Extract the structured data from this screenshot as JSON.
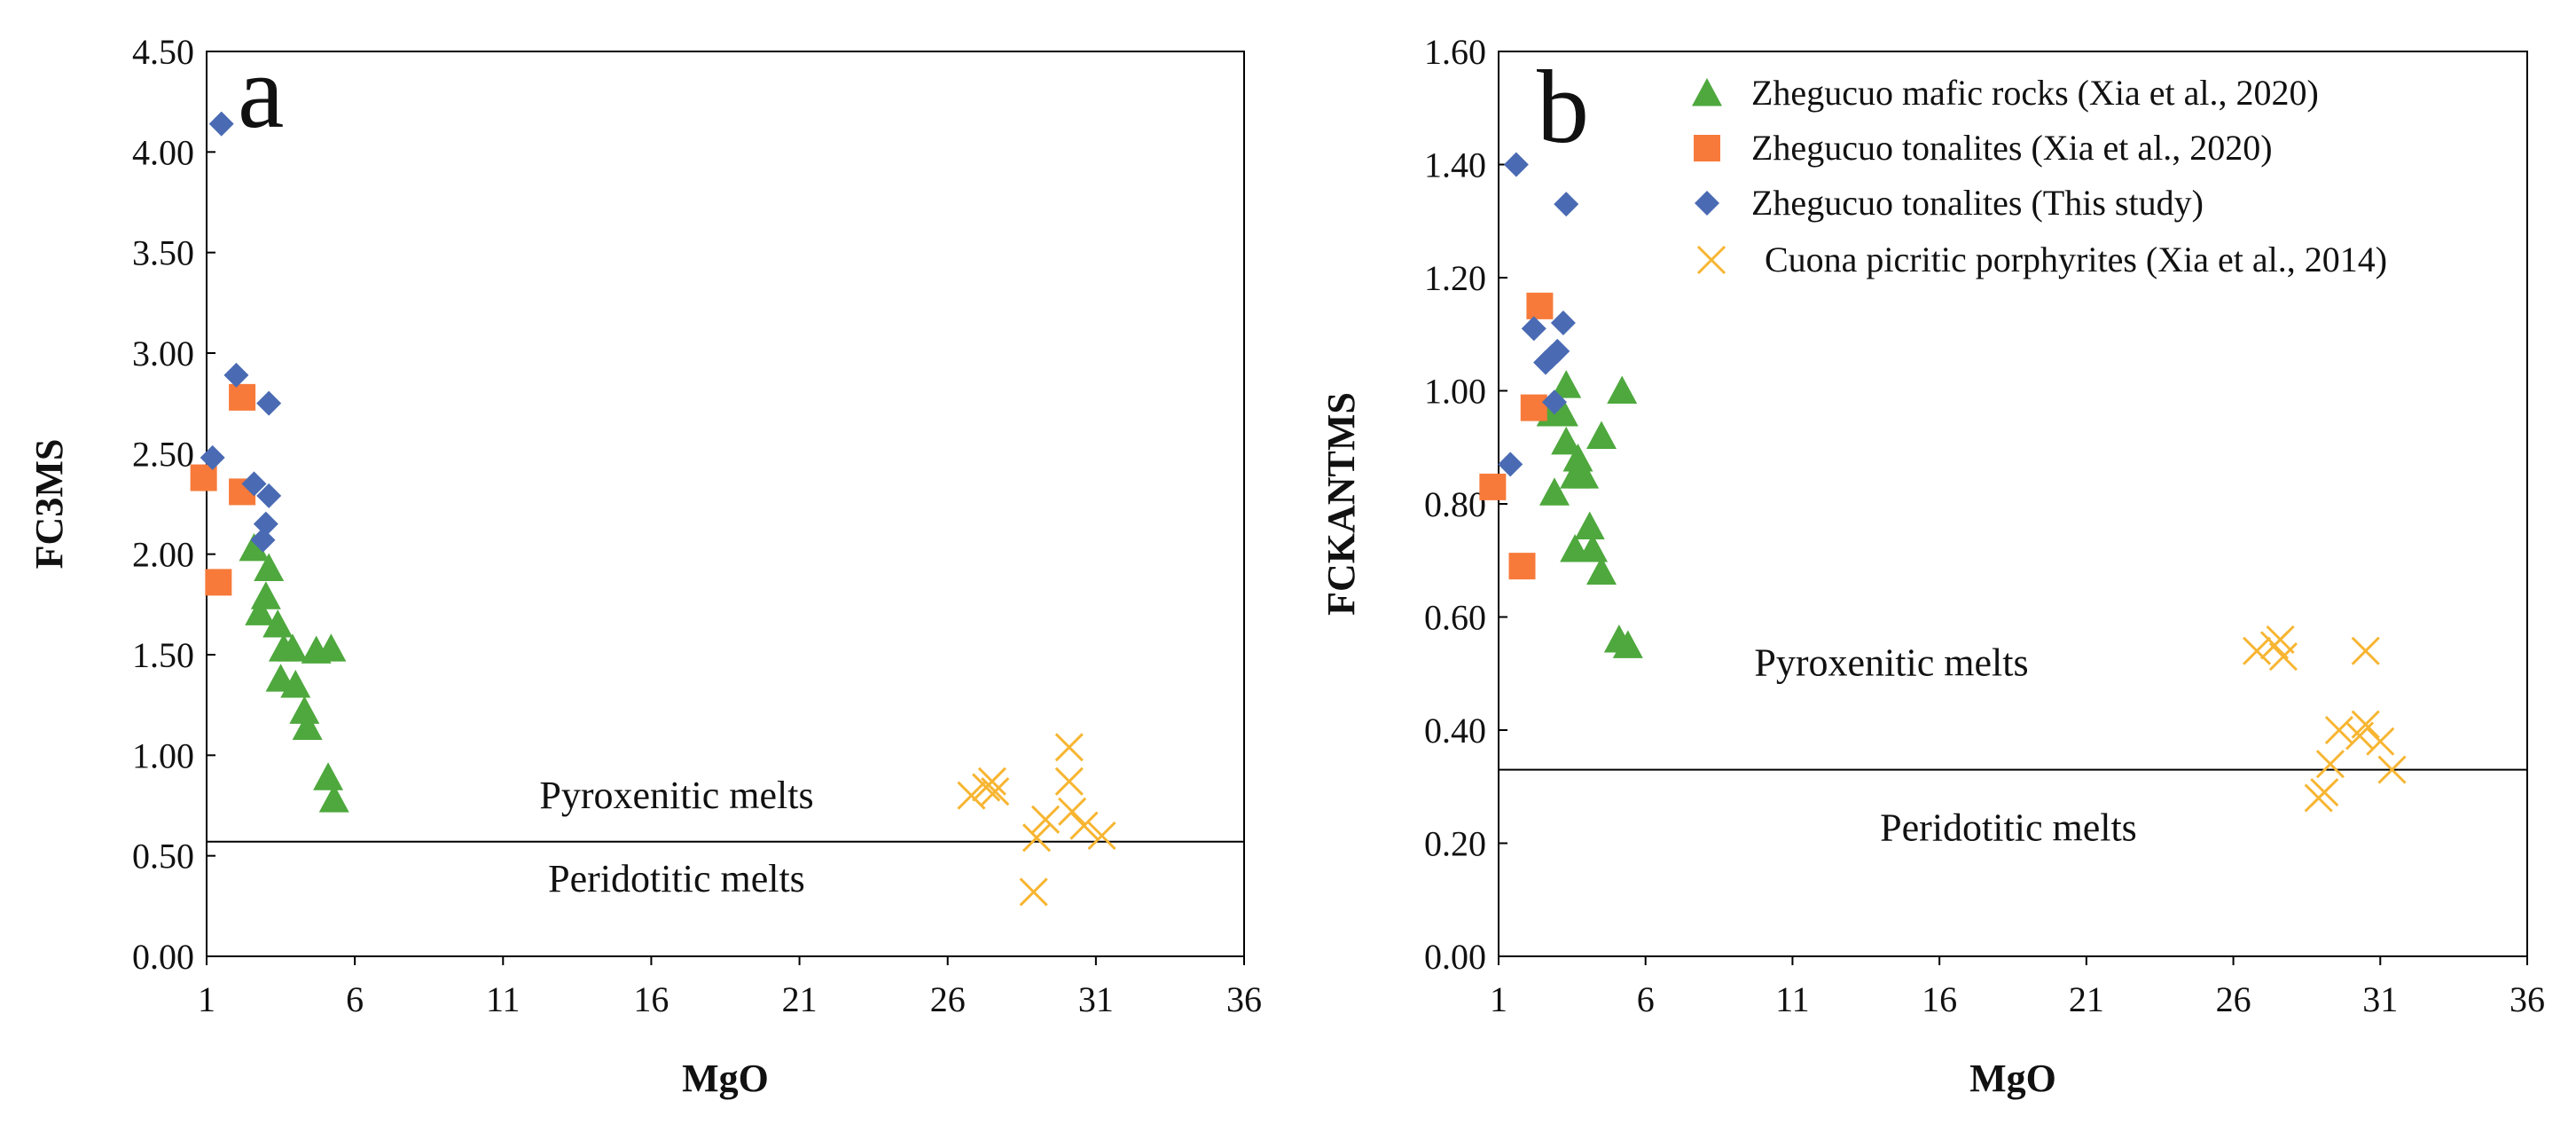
{
  "colors": {
    "mafic": "#4ea83d",
    "tonalite_xia": "#f77a3a",
    "tonalite_this": "#4a6bb3",
    "picritic": "#f7b531",
    "axis": "#000000"
  },
  "legend": {
    "items": [
      {
        "marker": "triangle",
        "label": "Zhegucuo mafic rocks (Xia et al., 2020)"
      },
      {
        "marker": "square",
        "label": "Zhegucuo tonalites (Xia et al., 2020)"
      },
      {
        "marker": "diamond",
        "label": "Zhegucuo tonalites (This study)"
      },
      {
        "marker": "cross",
        "label": "Cuona picritic porphyrites (Xia et al., 2014)"
      }
    ],
    "placement": "top-right of panel b"
  },
  "chart_data": [
    {
      "type": "scatter",
      "panel_label": "a",
      "xlabel": "MgO",
      "ylabel": "FC3MS",
      "xlim": [
        1,
        36
      ],
      "ylim": [
        0,
        4.5
      ],
      "x_ticks": [
        "1",
        "6",
        "11",
        "16",
        "21",
        "26",
        "31",
        "36"
      ],
      "y_ticks": [
        "0.00",
        "0.50",
        "1.00",
        "1.50",
        "2.00",
        "2.50",
        "3.00",
        "3.50",
        "4.00",
        "4.50"
      ],
      "boundary": {
        "y": 0.57,
        "above_label": "Pyroxenitic melts",
        "below_label": "Peridotitic melts"
      },
      "series": [
        {
          "key": "mafic",
          "marker": "triangle",
          "points": [
            [
              2.6,
              2.03
            ],
            [
              3.1,
              1.93
            ],
            [
              3.0,
              1.79
            ],
            [
              2.8,
              1.71
            ],
            [
              3.4,
              1.65
            ],
            [
              3.6,
              1.53
            ],
            [
              3.9,
              1.53
            ],
            [
              4.7,
              1.52
            ],
            [
              5.2,
              1.53
            ],
            [
              3.5,
              1.38
            ],
            [
              4.0,
              1.35
            ],
            [
              4.3,
              1.22
            ],
            [
              4.4,
              1.14
            ],
            [
              5.1,
              0.89
            ],
            [
              5.3,
              0.78
            ]
          ]
        },
        {
          "key": "tonalite_xia",
          "marker": "square",
          "points": [
            [
              2.2,
              2.78
            ],
            [
              0.9,
              2.38
            ],
            [
              2.2,
              2.31
            ],
            [
              1.4,
              1.86
            ]
          ]
        },
        {
          "key": "tonalite_this",
          "marker": "diamond",
          "points": [
            [
              1.5,
              4.14
            ],
            [
              2.0,
              2.89
            ],
            [
              3.1,
              2.75
            ],
            [
              1.2,
              2.48
            ],
            [
              2.6,
              2.35
            ],
            [
              3.1,
              2.29
            ],
            [
              3.0,
              2.15
            ],
            [
              2.9,
              2.07
            ]
          ]
        },
        {
          "key": "picritic",
          "marker": "cross",
          "points": [
            [
              26.8,
              0.8
            ],
            [
              27.3,
              0.84
            ],
            [
              27.5,
              0.87
            ],
            [
              27.6,
              0.82
            ],
            [
              30.1,
              1.04
            ],
            [
              30.1,
              0.87
            ],
            [
              30.2,
              0.72
            ],
            [
              29.3,
              0.68
            ],
            [
              29.0,
              0.59
            ],
            [
              30.6,
              0.65
            ],
            [
              31.2,
              0.6
            ],
            [
              28.9,
              0.32
            ]
          ]
        }
      ]
    },
    {
      "type": "scatter",
      "panel_label": "b",
      "xlabel": "MgO",
      "ylabel": "FCKANTMS",
      "xlim": [
        1,
        36
      ],
      "ylim": [
        0,
        1.6
      ],
      "x_ticks": [
        "1",
        "6",
        "11",
        "16",
        "21",
        "26",
        "31",
        "36"
      ],
      "y_ticks": [
        "0.00",
        "0.20",
        "0.40",
        "0.60",
        "0.80",
        "1.00",
        "1.20",
        "1.40",
        "1.60"
      ],
      "boundary": {
        "y": 0.33,
        "above_label": "Pyroxenitic melts",
        "below_label": "Peridotitic melts"
      },
      "series": [
        {
          "key": "mafic",
          "marker": "triangle",
          "points": [
            [
              3.3,
              1.01
            ],
            [
              5.2,
              1.0
            ],
            [
              2.8,
              0.96
            ],
            [
              3.2,
              0.96
            ],
            [
              3.3,
              0.91
            ],
            [
              4.5,
              0.92
            ],
            [
              3.7,
              0.88
            ],
            [
              3.9,
              0.85
            ],
            [
              3.6,
              0.85
            ],
            [
              2.9,
              0.82
            ],
            [
              4.1,
              0.76
            ],
            [
              4.2,
              0.72
            ],
            [
              3.6,
              0.72
            ],
            [
              4.5,
              0.68
            ],
            [
              5.1,
              0.56
            ],
            [
              5.4,
              0.55
            ]
          ]
        },
        {
          "key": "tonalite_xia",
          "marker": "square",
          "points": [
            [
              2.4,
              1.15
            ],
            [
              2.2,
              0.97
            ],
            [
              0.8,
              0.83
            ],
            [
              1.8,
              0.69
            ]
          ]
        },
        {
          "key": "tonalite_this",
          "marker": "diamond",
          "points": [
            [
              1.6,
              1.4
            ],
            [
              3.3,
              1.33
            ],
            [
              3.2,
              1.12
            ],
            [
              2.2,
              1.11
            ],
            [
              2.8,
              1.06
            ],
            [
              3.0,
              1.07
            ],
            [
              2.6,
              1.05
            ],
            [
              2.9,
              0.98
            ],
            [
              1.4,
              0.87
            ]
          ]
        },
        {
          "key": "picritic",
          "marker": "cross",
          "points": [
            [
              26.8,
              0.54
            ],
            [
              27.4,
              0.55
            ],
            [
              27.6,
              0.56
            ],
            [
              27.7,
              0.53
            ],
            [
              30.5,
              0.54
            ],
            [
              30.5,
              0.41
            ],
            [
              30.3,
              0.39
            ],
            [
              31.0,
              0.38
            ],
            [
              29.6,
              0.4
            ],
            [
              29.3,
              0.34
            ],
            [
              31.4,
              0.33
            ],
            [
              28.9,
              0.28
            ],
            [
              29.1,
              0.29
            ]
          ]
        }
      ]
    }
  ]
}
